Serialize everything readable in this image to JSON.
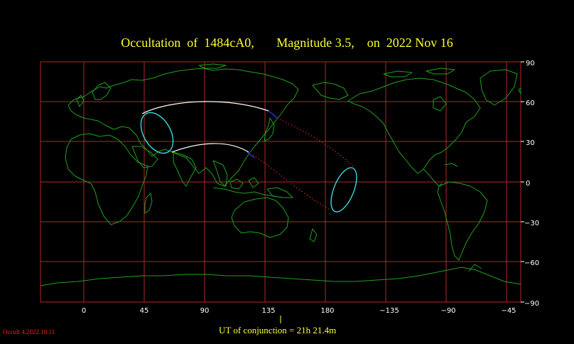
{
  "title": "Occultation  of  1484cA0,       Magnitude 3.5,    on  2022 Nov 16",
  "footer": {
    "ut_conjunction": "UT of conjunction = 21h 21.4m",
    "version": "Occult 4.2022.10.11"
  },
  "axes": {
    "lon_ticks": [
      "0",
      "45",
      "90",
      "135",
      "180",
      "−135",
      "−90",
      "−45"
    ],
    "lat_ticks": [
      "90",
      "60",
      "30",
      "0",
      "−30",
      "−60",
      "−90"
    ]
  },
  "colors": {
    "grid": "#b02828",
    "coast": "#1fa01f",
    "path_daylight": "#ffffff",
    "path_night": "#e02020",
    "limit_ellipse": "#33dddd",
    "twilight": "#2030e0",
    "title": "#ffff33"
  }
}
